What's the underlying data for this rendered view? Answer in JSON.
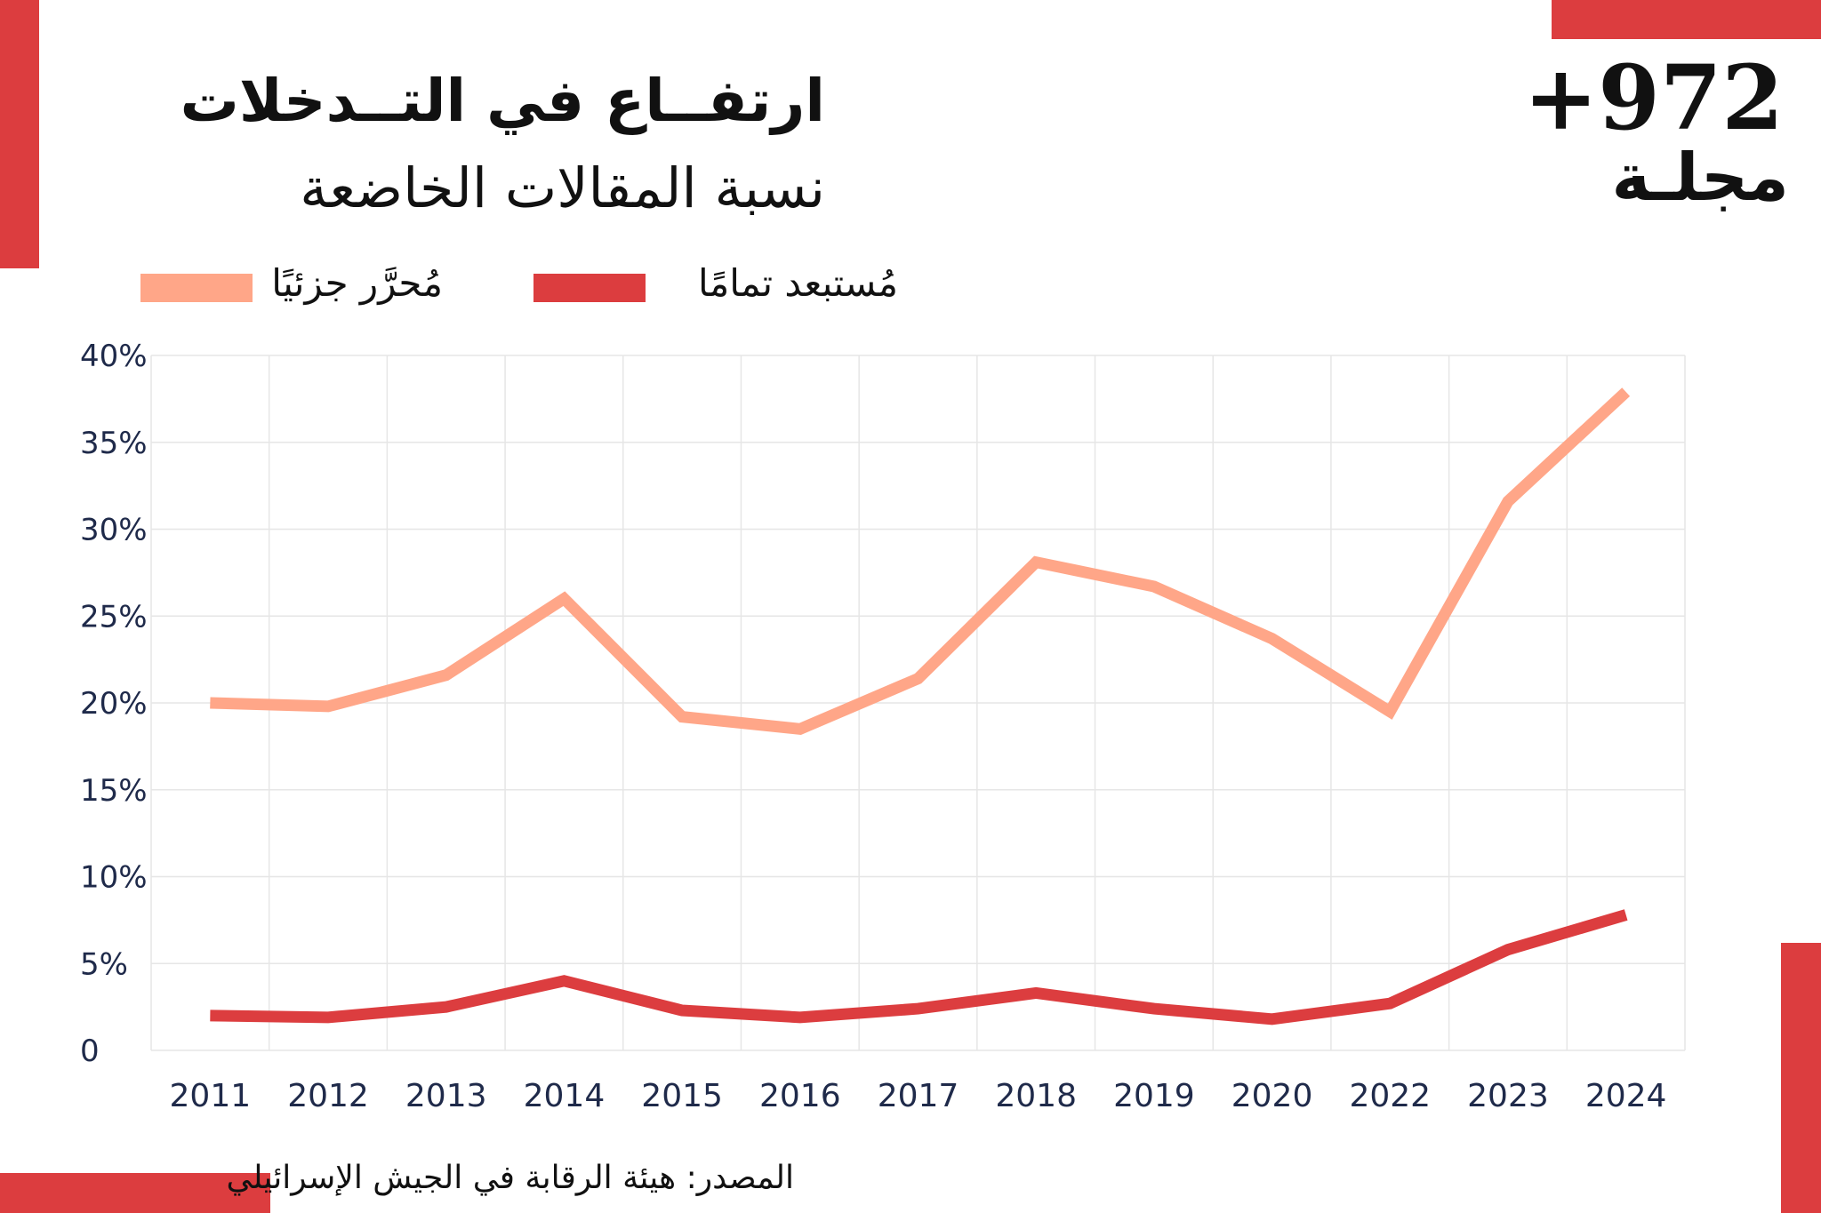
{
  "header": {
    "title": "ارتفــاع في التــدخلات",
    "subtitle": "نسبة المقالات الخاضعة"
  },
  "brand": {
    "number": "+972",
    "word": "مجلـة"
  },
  "colors": {
    "accent_bar": "#dc3d3f",
    "series_partial": "#ffa688",
    "series_full": "#dc3d3f",
    "grid": "#e6e6e6",
    "tick_text": "#1f2a4a"
  },
  "legend": {
    "position": "top",
    "items": [
      {
        "label": "مُحرَّر جزئيًا",
        "color": "#ffa688"
      },
      {
        "label": "مُستبعد تمامًا",
        "color": "#dc3d3f"
      }
    ]
  },
  "chart_data": {
    "type": "line",
    "title": "ارتفــاع في التــدخلات",
    "subtitle": "نسبة المقالات الخاضعة",
    "x": [
      "2011",
      "2012",
      "2013",
      "2014",
      "2015",
      "2016",
      "2017",
      "2018",
      "2019",
      "2020",
      "2022",
      "2023",
      "2024"
    ],
    "y_ticks": [
      "0",
      "5%",
      "10%",
      "15%",
      "20%",
      "25%",
      "30%",
      "35%",
      "40%"
    ],
    "ylim": [
      0,
      40
    ],
    "grid": true,
    "series": [
      {
        "name": "مُحرَّر جزئيًا",
        "color": "#ffa688",
        "values": [
          20,
          19.8,
          21.6,
          26,
          19.2,
          18.5,
          21.4,
          28.1,
          26.7,
          23.7,
          19.5,
          31.6,
          37.9
        ]
      },
      {
        "name": "مُستبعد تمامًا",
        "color": "#dc3d3f",
        "values": [
          2,
          1.9,
          2.5,
          4,
          2.3,
          1.9,
          2.4,
          3.3,
          2.4,
          1.8,
          2.7,
          5.8,
          7.8
        ]
      }
    ]
  },
  "source": {
    "text": "المصدر: هيئة الرقابة في الجيش الإسرائيلي"
  }
}
